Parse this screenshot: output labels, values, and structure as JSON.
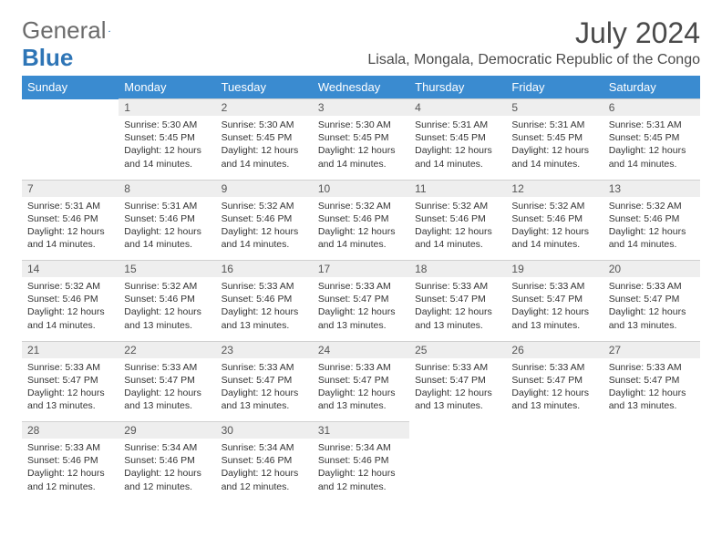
{
  "logo": {
    "word1": "General",
    "word2": "Blue"
  },
  "title": {
    "month_year": "July 2024",
    "location": "Lisala, Mongala, Democratic Republic of the Congo"
  },
  "colors": {
    "header_bg": "#3a8bd0",
    "header_text": "#ffffff",
    "daynum_bg": "#eeeeee",
    "daynum_text": "#555555",
    "body_text": "#333333",
    "title_text": "#4a4a4a",
    "logo_gray": "#6b6b6b",
    "logo_blue": "#2e75b6"
  },
  "weekdays": [
    "Sunday",
    "Monday",
    "Tuesday",
    "Wednesday",
    "Thursday",
    "Friday",
    "Saturday"
  ],
  "weeks": [
    [
      null,
      {
        "n": "1",
        "sr": "Sunrise: 5:30 AM",
        "ss": "Sunset: 5:45 PM",
        "dl": "Daylight: 12 hours and 14 minutes."
      },
      {
        "n": "2",
        "sr": "Sunrise: 5:30 AM",
        "ss": "Sunset: 5:45 PM",
        "dl": "Daylight: 12 hours and 14 minutes."
      },
      {
        "n": "3",
        "sr": "Sunrise: 5:30 AM",
        "ss": "Sunset: 5:45 PM",
        "dl": "Daylight: 12 hours and 14 minutes."
      },
      {
        "n": "4",
        "sr": "Sunrise: 5:31 AM",
        "ss": "Sunset: 5:45 PM",
        "dl": "Daylight: 12 hours and 14 minutes."
      },
      {
        "n": "5",
        "sr": "Sunrise: 5:31 AM",
        "ss": "Sunset: 5:45 PM",
        "dl": "Daylight: 12 hours and 14 minutes."
      },
      {
        "n": "6",
        "sr": "Sunrise: 5:31 AM",
        "ss": "Sunset: 5:45 PM",
        "dl": "Daylight: 12 hours and 14 minutes."
      }
    ],
    [
      {
        "n": "7",
        "sr": "Sunrise: 5:31 AM",
        "ss": "Sunset: 5:46 PM",
        "dl": "Daylight: 12 hours and 14 minutes."
      },
      {
        "n": "8",
        "sr": "Sunrise: 5:31 AM",
        "ss": "Sunset: 5:46 PM",
        "dl": "Daylight: 12 hours and 14 minutes."
      },
      {
        "n": "9",
        "sr": "Sunrise: 5:32 AM",
        "ss": "Sunset: 5:46 PM",
        "dl": "Daylight: 12 hours and 14 minutes."
      },
      {
        "n": "10",
        "sr": "Sunrise: 5:32 AM",
        "ss": "Sunset: 5:46 PM",
        "dl": "Daylight: 12 hours and 14 minutes."
      },
      {
        "n": "11",
        "sr": "Sunrise: 5:32 AM",
        "ss": "Sunset: 5:46 PM",
        "dl": "Daylight: 12 hours and 14 minutes."
      },
      {
        "n": "12",
        "sr": "Sunrise: 5:32 AM",
        "ss": "Sunset: 5:46 PM",
        "dl": "Daylight: 12 hours and 14 minutes."
      },
      {
        "n": "13",
        "sr": "Sunrise: 5:32 AM",
        "ss": "Sunset: 5:46 PM",
        "dl": "Daylight: 12 hours and 14 minutes."
      }
    ],
    [
      {
        "n": "14",
        "sr": "Sunrise: 5:32 AM",
        "ss": "Sunset: 5:46 PM",
        "dl": "Daylight: 12 hours and 14 minutes."
      },
      {
        "n": "15",
        "sr": "Sunrise: 5:32 AM",
        "ss": "Sunset: 5:46 PM",
        "dl": "Daylight: 12 hours and 13 minutes."
      },
      {
        "n": "16",
        "sr": "Sunrise: 5:33 AM",
        "ss": "Sunset: 5:46 PM",
        "dl": "Daylight: 12 hours and 13 minutes."
      },
      {
        "n": "17",
        "sr": "Sunrise: 5:33 AM",
        "ss": "Sunset: 5:47 PM",
        "dl": "Daylight: 12 hours and 13 minutes."
      },
      {
        "n": "18",
        "sr": "Sunrise: 5:33 AM",
        "ss": "Sunset: 5:47 PM",
        "dl": "Daylight: 12 hours and 13 minutes."
      },
      {
        "n": "19",
        "sr": "Sunrise: 5:33 AM",
        "ss": "Sunset: 5:47 PM",
        "dl": "Daylight: 12 hours and 13 minutes."
      },
      {
        "n": "20",
        "sr": "Sunrise: 5:33 AM",
        "ss": "Sunset: 5:47 PM",
        "dl": "Daylight: 12 hours and 13 minutes."
      }
    ],
    [
      {
        "n": "21",
        "sr": "Sunrise: 5:33 AM",
        "ss": "Sunset: 5:47 PM",
        "dl": "Daylight: 12 hours and 13 minutes."
      },
      {
        "n": "22",
        "sr": "Sunrise: 5:33 AM",
        "ss": "Sunset: 5:47 PM",
        "dl": "Daylight: 12 hours and 13 minutes."
      },
      {
        "n": "23",
        "sr": "Sunrise: 5:33 AM",
        "ss": "Sunset: 5:47 PM",
        "dl": "Daylight: 12 hours and 13 minutes."
      },
      {
        "n": "24",
        "sr": "Sunrise: 5:33 AM",
        "ss": "Sunset: 5:47 PM",
        "dl": "Daylight: 12 hours and 13 minutes."
      },
      {
        "n": "25",
        "sr": "Sunrise: 5:33 AM",
        "ss": "Sunset: 5:47 PM",
        "dl": "Daylight: 12 hours and 13 minutes."
      },
      {
        "n": "26",
        "sr": "Sunrise: 5:33 AM",
        "ss": "Sunset: 5:47 PM",
        "dl": "Daylight: 12 hours and 13 minutes."
      },
      {
        "n": "27",
        "sr": "Sunrise: 5:33 AM",
        "ss": "Sunset: 5:47 PM",
        "dl": "Daylight: 12 hours and 13 minutes."
      }
    ],
    [
      {
        "n": "28",
        "sr": "Sunrise: 5:33 AM",
        "ss": "Sunset: 5:46 PM",
        "dl": "Daylight: 12 hours and 12 minutes."
      },
      {
        "n": "29",
        "sr": "Sunrise: 5:34 AM",
        "ss": "Sunset: 5:46 PM",
        "dl": "Daylight: 12 hours and 12 minutes."
      },
      {
        "n": "30",
        "sr": "Sunrise: 5:34 AM",
        "ss": "Sunset: 5:46 PM",
        "dl": "Daylight: 12 hours and 12 minutes."
      },
      {
        "n": "31",
        "sr": "Sunrise: 5:34 AM",
        "ss": "Sunset: 5:46 PM",
        "dl": "Daylight: 12 hours and 12 minutes."
      },
      null,
      null,
      null
    ]
  ]
}
